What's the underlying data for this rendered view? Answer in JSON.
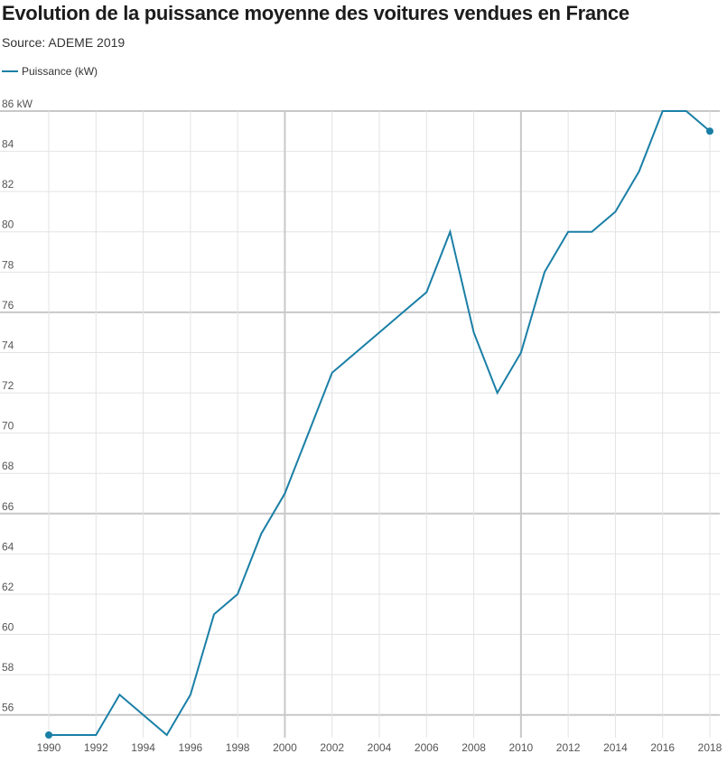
{
  "chart_data": {
    "type": "line",
    "title": "Evolution de la puissance moyenne des voitures vendues en France",
    "subtitle": "Source: ADEME 2019",
    "xlabel": "",
    "ylabel": "",
    "ylim": [
      55,
      86
    ],
    "xlim": [
      1990,
      2018
    ],
    "y_unit": "kW",
    "y_ticks": [
      "86 kW",
      "84",
      "82",
      "80",
      "78",
      "76",
      "74",
      "72",
      "70",
      "68",
      "66",
      "64",
      "62",
      "60",
      "58",
      "56"
    ],
    "x_ticks": [
      "1990",
      "1992",
      "1994",
      "1996",
      "1998",
      "2000",
      "2002",
      "2004",
      "2006",
      "2008",
      "2010",
      "2012",
      "2014",
      "2016",
      "2018"
    ],
    "grid": true,
    "legend_position": "top-left",
    "series": [
      {
        "name": "Puissance (kW)",
        "color": "#1a7fa6",
        "x": [
          1990,
          1991,
          1992,
          1993,
          1994,
          1995,
          1996,
          1997,
          1998,
          1999,
          2000,
          2001,
          2002,
          2003,
          2004,
          2005,
          2006,
          2007,
          2008,
          2009,
          2010,
          2011,
          2012,
          2013,
          2014,
          2015,
          2016,
          2017,
          2018
        ],
        "values": [
          55,
          55,
          55,
          57,
          56,
          55,
          57,
          61,
          62,
          65,
          67,
          70,
          73,
          74,
          75,
          76,
          77,
          80,
          75,
          72,
          74,
          78,
          80,
          80,
          81,
          83,
          86,
          86,
          85
        ]
      }
    ]
  }
}
